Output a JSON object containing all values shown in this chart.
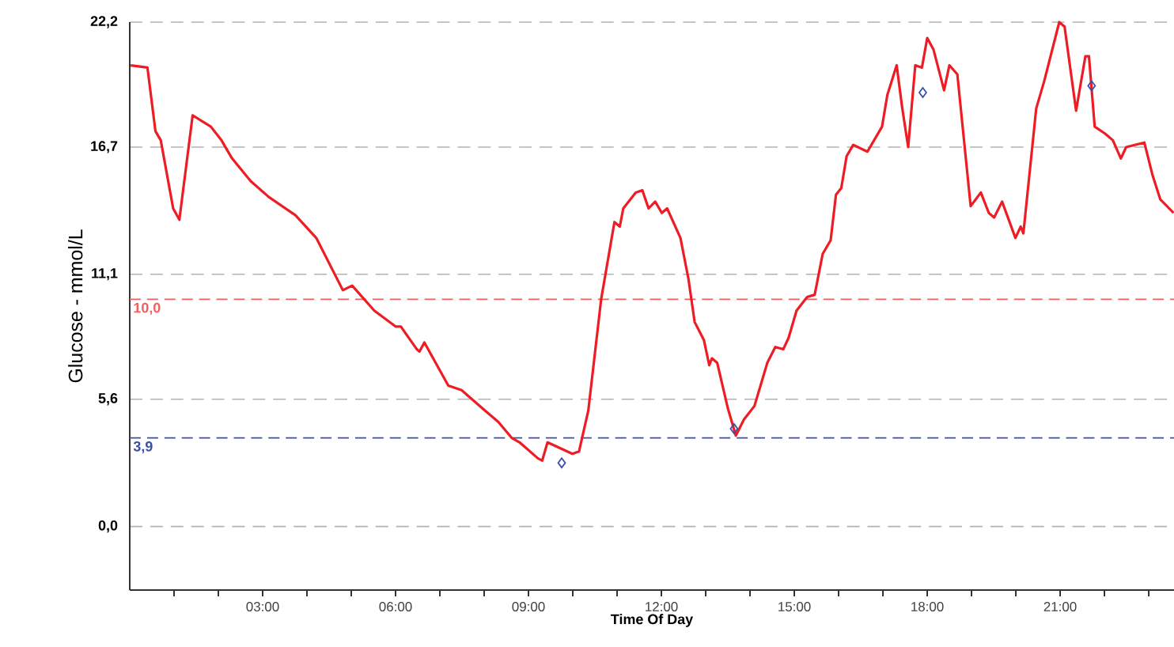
{
  "chart_data": {
    "type": "line",
    "xlabel": "Time Of Day",
    "ylabel": "Glucose - mmol/L",
    "xlim": [
      0,
      23.57
    ],
    "ylim": [
      -2.8,
      22.2
    ],
    "xticks": [
      {
        "value": 1,
        "label": null
      },
      {
        "value": 2,
        "label": null
      },
      {
        "value": 3,
        "label": "03:00"
      },
      {
        "value": 4,
        "label": null
      },
      {
        "value": 5,
        "label": null
      },
      {
        "value": 6,
        "label": "06:00"
      },
      {
        "value": 7,
        "label": null
      },
      {
        "value": 8,
        "label": null
      },
      {
        "value": 9,
        "label": "09:00"
      },
      {
        "value": 10,
        "label": null
      },
      {
        "value": 11,
        "label": null
      },
      {
        "value": 12,
        "label": "12:00"
      },
      {
        "value": 13,
        "label": null
      },
      {
        "value": 14,
        "label": null
      },
      {
        "value": 15,
        "label": "15:00"
      },
      {
        "value": 16,
        "label": null
      },
      {
        "value": 17,
        "label": null
      },
      {
        "value": 18,
        "label": "18:00"
      },
      {
        "value": 19,
        "label": null
      },
      {
        "value": 20,
        "label": null
      },
      {
        "value": 21,
        "label": "21:00"
      },
      {
        "value": 22,
        "label": null
      },
      {
        "value": 23,
        "label": null
      }
    ],
    "yticks": [
      {
        "value": 0,
        "label": "0,0"
      },
      {
        "value": 5.6,
        "label": "5,6"
      },
      {
        "value": 11.1,
        "label": "11,1"
      },
      {
        "value": 16.7,
        "label": "16,7"
      },
      {
        "value": 22.2,
        "label": "22,2"
      }
    ],
    "grid": "y",
    "line_style": "solid",
    "ref_lines": [
      {
        "axis": "y",
        "value": 10.0,
        "label": "10,0",
        "color": "#f06060",
        "line_style": "dashed"
      },
      {
        "axis": "y",
        "value": 3.9,
        "label": "3,9",
        "color": "#3a4fa8",
        "line_style": "dashed"
      }
    ],
    "series": [
      {
        "color": "#ee1c24",
        "x": [
          0.02,
          0.4,
          0.58,
          0.7,
          0.98,
          1.12,
          1.42,
          1.83,
          2.07,
          2.31,
          2.73,
          3.14,
          3.74,
          4.21,
          4.81,
          5.02,
          5.52,
          6.0,
          6.12,
          6.48,
          6.54,
          6.65,
          7.19,
          7.49,
          7.96,
          8.32,
          8.62,
          8.8,
          9.21,
          9.31,
          9.43,
          9.99,
          10.14,
          10.35,
          10.64,
          10.94,
          11.06,
          11.14,
          11.42,
          11.57,
          11.71,
          11.86,
          12.01,
          12.13,
          12.43,
          12.61,
          12.75,
          12.96,
          13.08,
          13.14,
          13.26,
          13.5,
          13.68,
          13.86,
          14.1,
          14.39,
          14.57,
          14.75,
          14.87,
          15.05,
          15.29,
          15.46,
          15.64,
          15.82,
          15.94,
          16.06,
          16.18,
          16.33,
          16.65,
          16.98,
          17.1,
          17.31,
          17.43,
          17.57,
          17.73,
          17.88,
          18.0,
          18.14,
          18.38,
          18.5,
          18.68,
          18.98,
          19.21,
          19.39,
          19.51,
          19.69,
          19.99,
          20.11,
          20.17,
          20.46,
          20.64,
          20.98,
          21.1,
          21.36,
          21.57,
          21.65,
          21.78,
          22.01,
          22.19,
          22.37,
          22.49,
          22.9,
          23.08,
          23.26,
          23.56
        ],
        "values": [
          20.3,
          20.2,
          17.4,
          17.0,
          14.0,
          13.5,
          18.1,
          17.6,
          17.0,
          16.2,
          15.2,
          14.5,
          13.7,
          12.7,
          10.4,
          10.6,
          9.5,
          8.8,
          8.8,
          7.8,
          7.7,
          8.1,
          6.2,
          6.0,
          5.2,
          4.6,
          3.9,
          3.7,
          3.0,
          2.9,
          3.7,
          3.2,
          3.3,
          5.1,
          10.0,
          13.4,
          13.2,
          14.0,
          14.7,
          14.8,
          14.0,
          14.3,
          13.8,
          14.0,
          12.7,
          10.9,
          9.0,
          8.2,
          7.1,
          7.4,
          7.2,
          5.2,
          4.0,
          4.7,
          5.3,
          7.2,
          7.9,
          7.8,
          8.3,
          9.5,
          10.1,
          10.2,
          12.0,
          12.6,
          14.6,
          14.9,
          16.3,
          16.8,
          16.5,
          17.6,
          19.0,
          20.3,
          18.5,
          16.7,
          20.3,
          20.2,
          21.5,
          21.0,
          19.2,
          20.3,
          19.9,
          14.1,
          14.7,
          13.8,
          13.6,
          14.3,
          12.7,
          13.2,
          12.9,
          18.4,
          19.6,
          22.2,
          22.0,
          18.3,
          20.7,
          20.7,
          17.6,
          17.3,
          17.0,
          16.2,
          16.7,
          16.9,
          15.5,
          14.4,
          13.8
        ]
      },
      {
        "type": "scatter",
        "marker": "diamond",
        "color": "#3a4fa8",
        "x": [
          9.75,
          13.64,
          17.9,
          21.71
        ],
        "values": [
          2.8,
          4.3,
          19.1,
          19.4
        ]
      }
    ]
  }
}
